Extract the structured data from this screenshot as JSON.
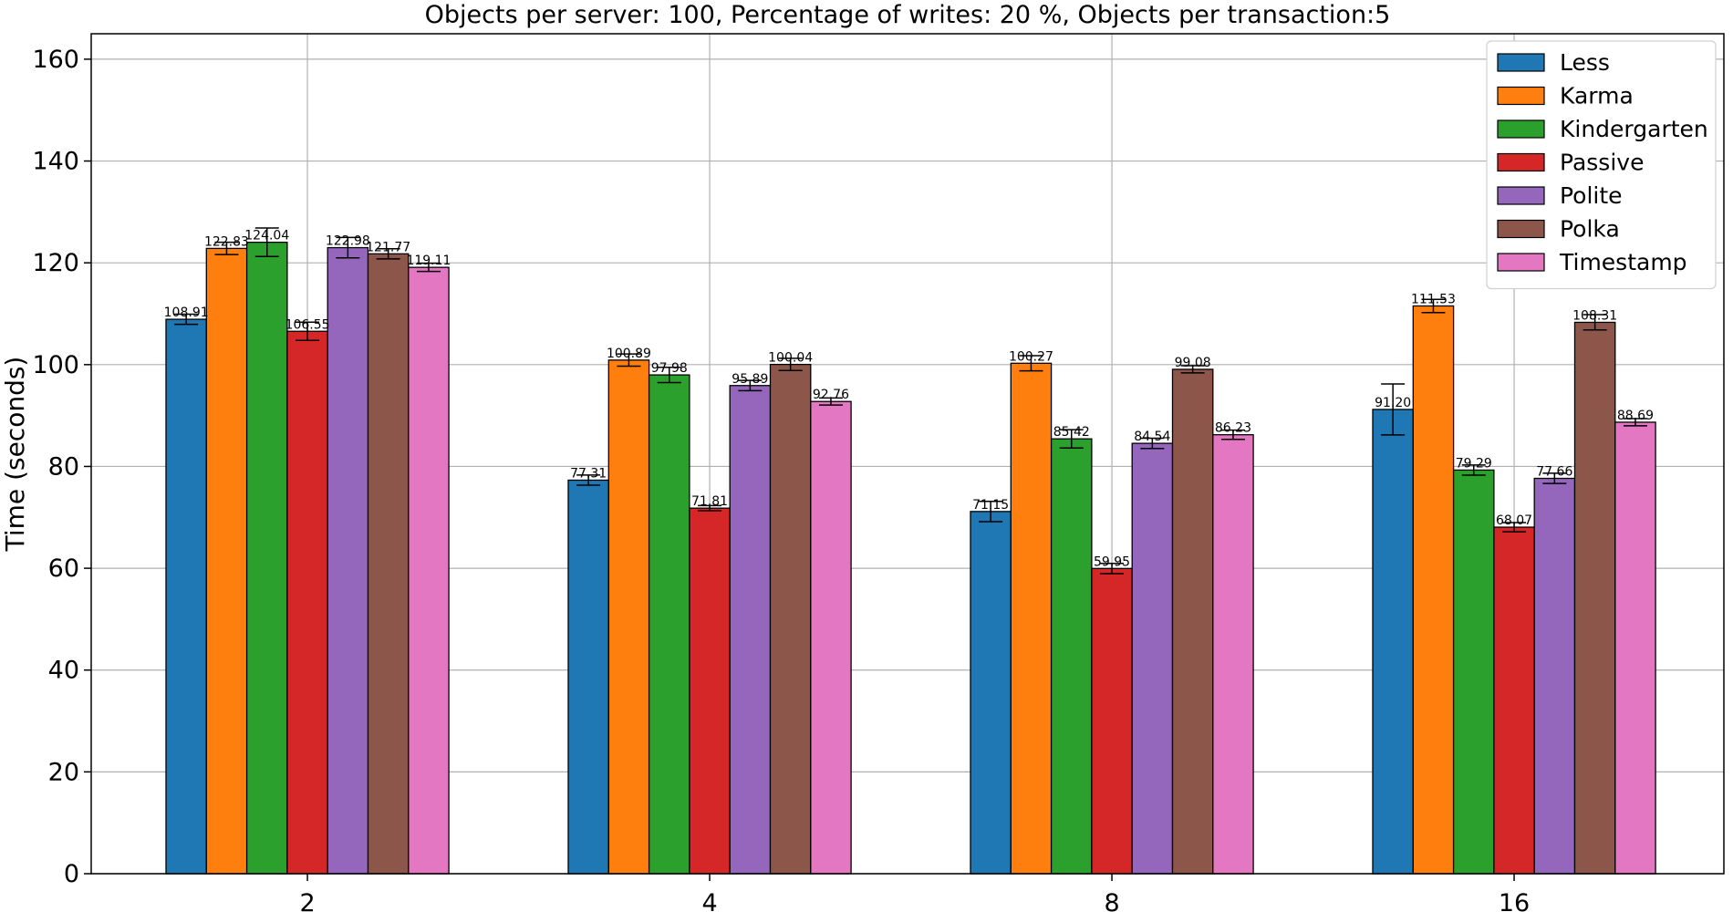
{
  "chart_data": {
    "type": "bar",
    "title": "Objects per server: 100, Percentage of writes: 20 %, Objects per transaction:5",
    "xlabel": "",
    "ylabel": "Time (seconds)",
    "categories": [
      "2",
      "4",
      "8",
      "16"
    ],
    "ylim": [
      0,
      165
    ],
    "yticks": [
      0,
      20,
      40,
      60,
      80,
      100,
      120,
      140,
      160
    ],
    "grid": true,
    "legend_position": "top-right",
    "series": [
      {
        "name": "Less",
        "color": "#1f77b4",
        "values": [
          108.91,
          77.31,
          71.15,
          91.2
        ],
        "errors": [
          1.0,
          1.0,
          2.0,
          5.0
        ],
        "labels": [
          "108.91",
          "77.31",
          "71.15",
          "91.20"
        ]
      },
      {
        "name": "Karma",
        "color": "#ff7f0e",
        "values": [
          122.83,
          100.89,
          100.27,
          111.53
        ],
        "errors": [
          1.2,
          1.2,
          1.5,
          1.3
        ],
        "labels": [
          "122.83",
          "100.89",
          "100.27",
          "111.53"
        ]
      },
      {
        "name": "Kindergarten",
        "color": "#2ca02c",
        "values": [
          124.04,
          97.98,
          85.42,
          79.29
        ],
        "errors": [
          2.8,
          1.5,
          1.8,
          1.0
        ],
        "labels": [
          "124.04",
          "97.98",
          "85.42",
          "79.29"
        ]
      },
      {
        "name": "Passive",
        "color": "#d62728",
        "values": [
          106.55,
          71.81,
          59.95,
          68.07
        ],
        "errors": [
          1.8,
          0.5,
          1.0,
          0.9
        ],
        "labels": [
          "106.55",
          "71.81",
          "59.95",
          "68.07"
        ]
      },
      {
        "name": "Polite",
        "color": "#9467bd",
        "values": [
          122.98,
          95.89,
          84.54,
          77.66
        ],
        "errors": [
          2.0,
          1.0,
          1.0,
          1.0
        ],
        "labels": [
          "122.98",
          "95.89",
          "84.54",
          "77.66"
        ]
      },
      {
        "name": "Polka",
        "color": "#8c564b",
        "values": [
          121.77,
          100.04,
          99.08,
          108.31
        ],
        "errors": [
          1.0,
          1.2,
          0.7,
          1.5
        ],
        "labels": [
          "121.77",
          "100.04",
          "99.08",
          "108.31"
        ]
      },
      {
        "name": "Timestamp",
        "color": "#e377c2",
        "values": [
          119.11,
          92.76,
          86.23,
          88.69
        ],
        "errors": [
          0.8,
          0.7,
          0.9,
          0.7
        ],
        "labels": [
          "119.11",
          "92.76",
          "86.23",
          "88.69"
        ]
      }
    ]
  }
}
